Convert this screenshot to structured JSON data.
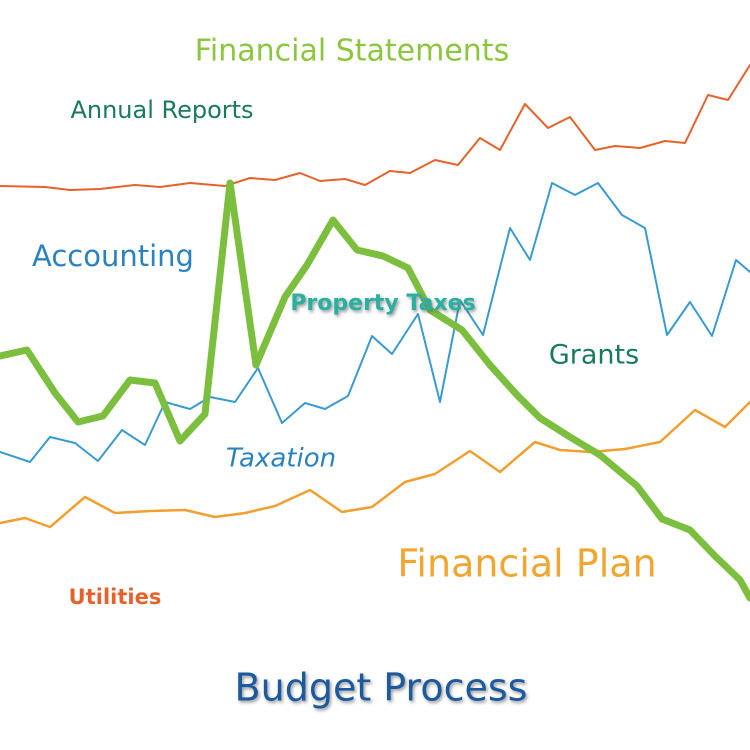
{
  "labels": {
    "financial_statements": "Financial Statements",
    "annual_reports": "Annual Reports",
    "accounting": "Accounting",
    "property_taxes": "Property Taxes",
    "grants": "Grants",
    "taxation": "Taxation",
    "financial_plan": "Financial Plan",
    "utilities": "Utilities",
    "budget_process": "Budget Process"
  }
}
